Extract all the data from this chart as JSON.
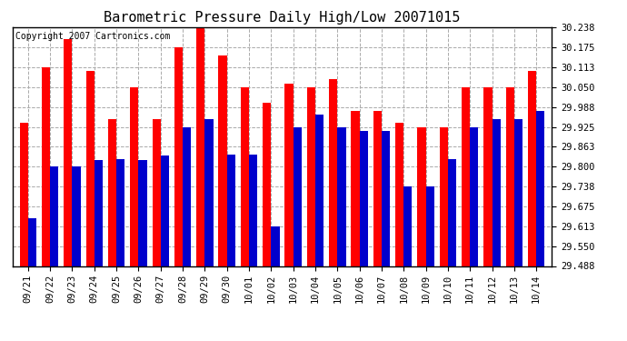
{
  "title": "Barometric Pressure Daily High/Low 20071015",
  "copyright": "Copyright 2007 Cartronics.com",
  "categories": [
    "09/21",
    "09/22",
    "09/23",
    "09/24",
    "09/25",
    "09/26",
    "09/27",
    "09/28",
    "09/29",
    "09/30",
    "10/01",
    "10/02",
    "10/03",
    "10/04",
    "10/05",
    "10/06",
    "10/07",
    "10/08",
    "10/09",
    "10/10",
    "10/11",
    "10/12",
    "10/13",
    "10/14"
  ],
  "high_values": [
    29.938,
    30.113,
    30.2,
    30.1,
    29.95,
    30.05,
    29.95,
    30.175,
    30.238,
    30.15,
    30.05,
    30.0,
    30.06,
    30.05,
    30.075,
    29.975,
    29.975,
    29.938,
    29.925,
    29.925,
    30.05,
    30.05,
    30.05,
    30.1
  ],
  "low_values": [
    29.638,
    29.8,
    29.8,
    29.82,
    29.825,
    29.82,
    29.835,
    29.925,
    29.95,
    29.838,
    29.838,
    29.613,
    29.925,
    29.963,
    29.925,
    29.913,
    29.913,
    29.738,
    29.738,
    29.825,
    29.925,
    29.95,
    29.95,
    29.975
  ],
  "bar_width": 0.38,
  "high_color": "#ff0000",
  "low_color": "#0000cc",
  "background_color": "#ffffff",
  "grid_color": "#aaaaaa",
  "ylim_min": 29.488,
  "ylim_max": 30.238,
  "yticks": [
    29.488,
    29.55,
    29.613,
    29.675,
    29.738,
    29.8,
    29.863,
    29.925,
    29.988,
    30.05,
    30.113,
    30.175,
    30.238
  ],
  "title_fontsize": 11,
  "tick_fontsize": 7.5,
  "copyright_fontsize": 7
}
